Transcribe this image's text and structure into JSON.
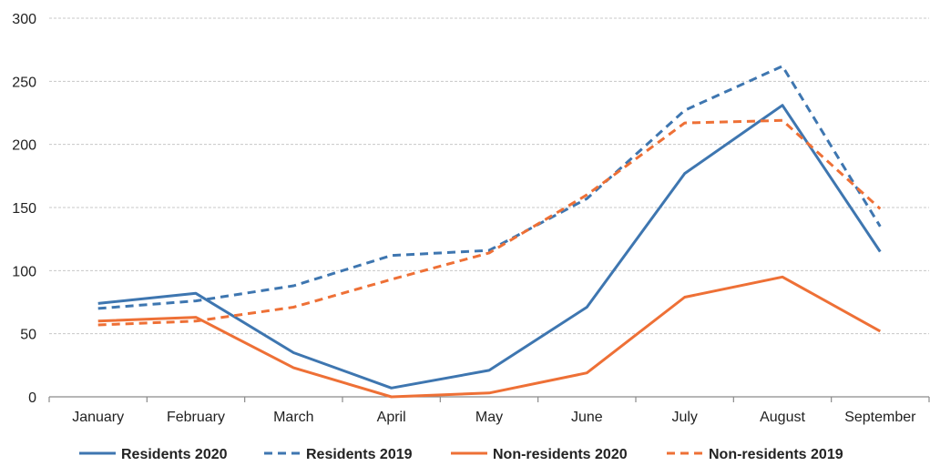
{
  "chart_data": {
    "type": "line",
    "categories": [
      "January",
      "February",
      "March",
      "April",
      "May",
      "June",
      "July",
      "August",
      "September"
    ],
    "ylim": [
      0,
      300
    ],
    "yticks": [
      0,
      50,
      100,
      150,
      200,
      250,
      300
    ],
    "grid": true,
    "legend_position": "bottom",
    "series": [
      {
        "name": "Residents 2020",
        "color": "#3E76B0",
        "dash": "solid",
        "values": [
          74,
          82,
          35,
          7,
          21,
          71,
          177,
          231,
          115
        ]
      },
      {
        "name": "Residents 2019",
        "color": "#3E76B0",
        "dash": "dashed",
        "values": [
          70,
          76,
          88,
          112,
          116,
          157,
          227,
          262,
          135
        ]
      },
      {
        "name": "Non-residents 2020",
        "color": "#EE7036",
        "dash": "solid",
        "values": [
          60,
          63,
          23,
          0,
          3,
          19,
          79,
          95,
          52
        ]
      },
      {
        "name": "Non-residents 2019",
        "color": "#EE7036",
        "dash": "dashed",
        "values": [
          57,
          60,
          71,
          93,
          114,
          160,
          217,
          219,
          149
        ]
      }
    ]
  }
}
